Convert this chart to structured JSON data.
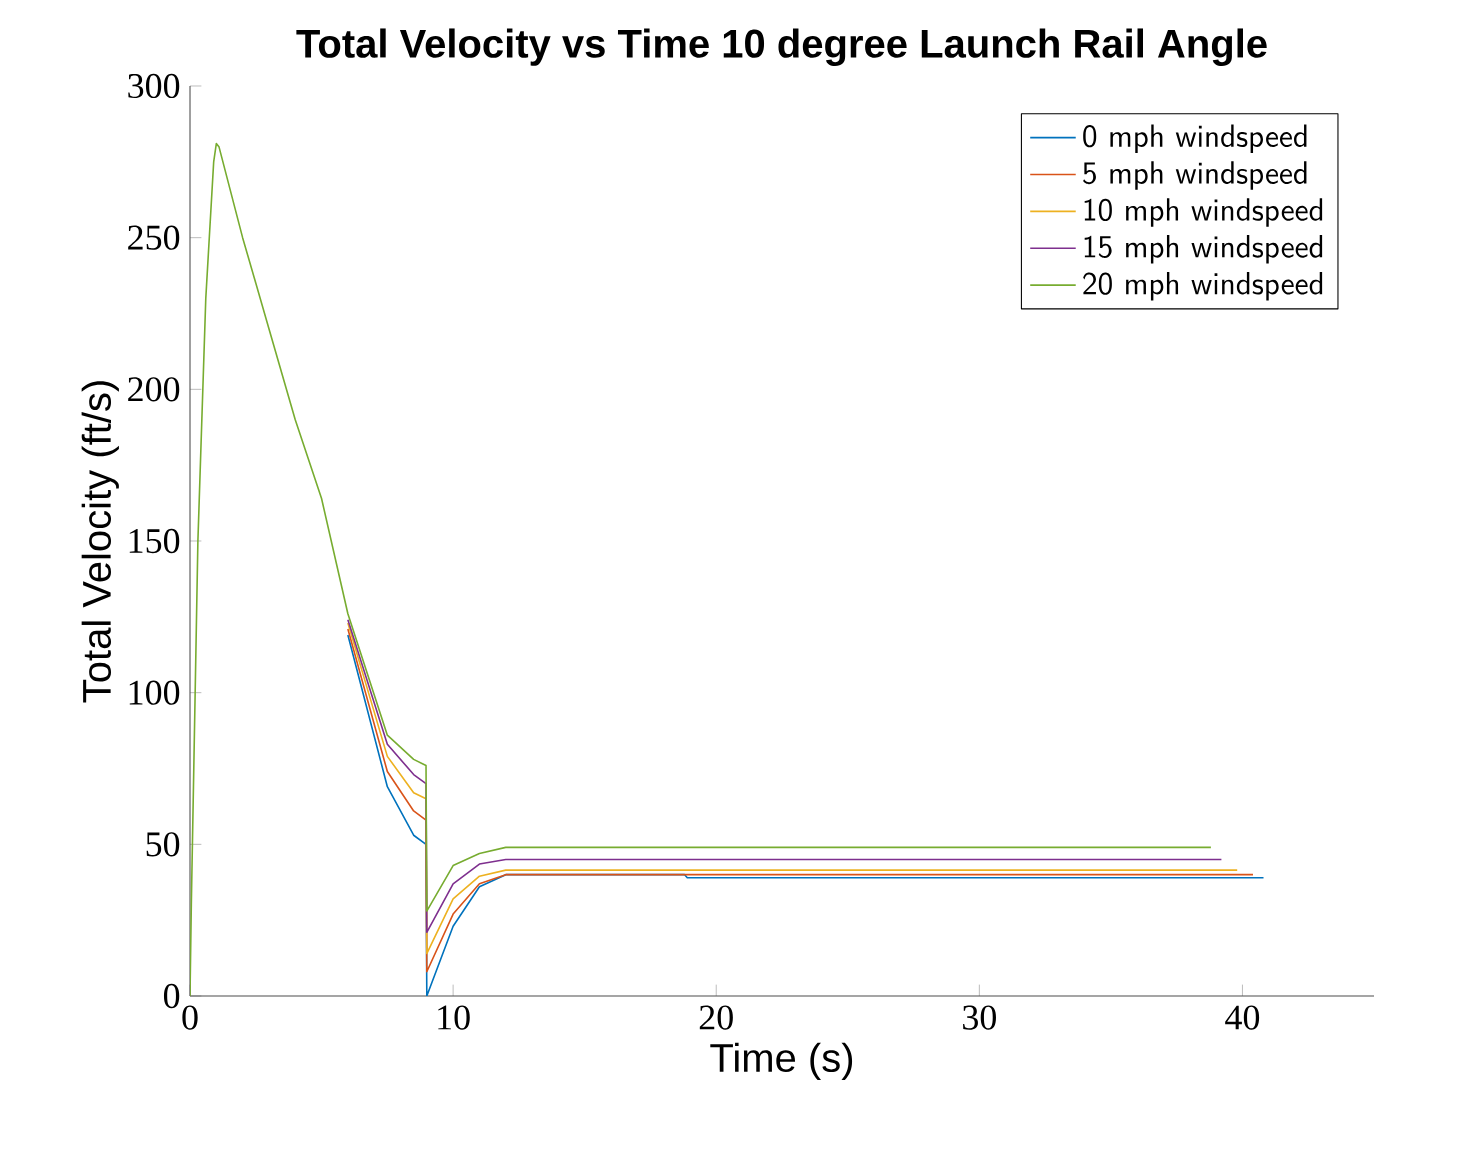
{
  "chart_data": {
    "type": "line",
    "title": "Total Velocity vs Time 10 degree Launch Rail Angle",
    "xlabel": "Time (s)",
    "ylabel": "Total Velocity (ft/s)",
    "xlim": [
      0,
      45
    ],
    "ylim": [
      0,
      300
    ],
    "xticks": [
      0,
      10,
      20,
      30,
      40
    ],
    "yticks": [
      0,
      50,
      100,
      150,
      200,
      250,
      300
    ],
    "grid": false,
    "legend": "top right",
    "marker": "none",
    "line_style": "solid",
    "series": [
      {
        "name": "0 mph windspeed",
        "color": "#0072bd",
        "x": [
          6,
          7.5,
          8.5,
          8.97,
          9.0,
          10,
          11,
          12,
          18.8,
          18.9,
          40.8
        ],
        "values": [
          119,
          69,
          53,
          50,
          0,
          23,
          36,
          40,
          40,
          39,
          39
        ]
      },
      {
        "name": "5 mph windspeed",
        "color": "#d95319",
        "x": [
          6,
          7.5,
          8.5,
          8.97,
          9.0,
          10,
          11,
          12,
          40.4
        ],
        "values": [
          121,
          74,
          61,
          58,
          8,
          27,
          37,
          40,
          40
        ]
      },
      {
        "name": "10 mph windspeed",
        "color": "#edb120",
        "x": [
          6,
          7.5,
          8.5,
          8.97,
          9.0,
          10,
          11,
          12,
          39.8
        ],
        "values": [
          123,
          79,
          67,
          65,
          14,
          32,
          39.5,
          41.5,
          41.5
        ]
      },
      {
        "name": "15 mph windspeed",
        "color": "#7e2f8e",
        "x": [
          6,
          7.5,
          8.5,
          8.97,
          9.0,
          10,
          11,
          12,
          39.2
        ],
        "values": [
          124,
          83,
          73,
          70,
          21,
          37,
          43.5,
          45,
          45
        ]
      },
      {
        "name": "20 mph windspeed",
        "color": "#77ac30",
        "x": [
          0,
          0.05,
          0.3,
          0.6,
          0.9,
          1.0,
          1.1,
          2,
          3,
          4,
          5,
          6,
          7.5,
          8.5,
          8.97,
          9.0,
          10,
          11,
          12,
          38.8
        ],
        "values": [
          0,
          30,
          150,
          230,
          275,
          281,
          280,
          250,
          220,
          190,
          164,
          126,
          86,
          78,
          76,
          28,
          43,
          47,
          49,
          49
        ]
      }
    ]
  }
}
